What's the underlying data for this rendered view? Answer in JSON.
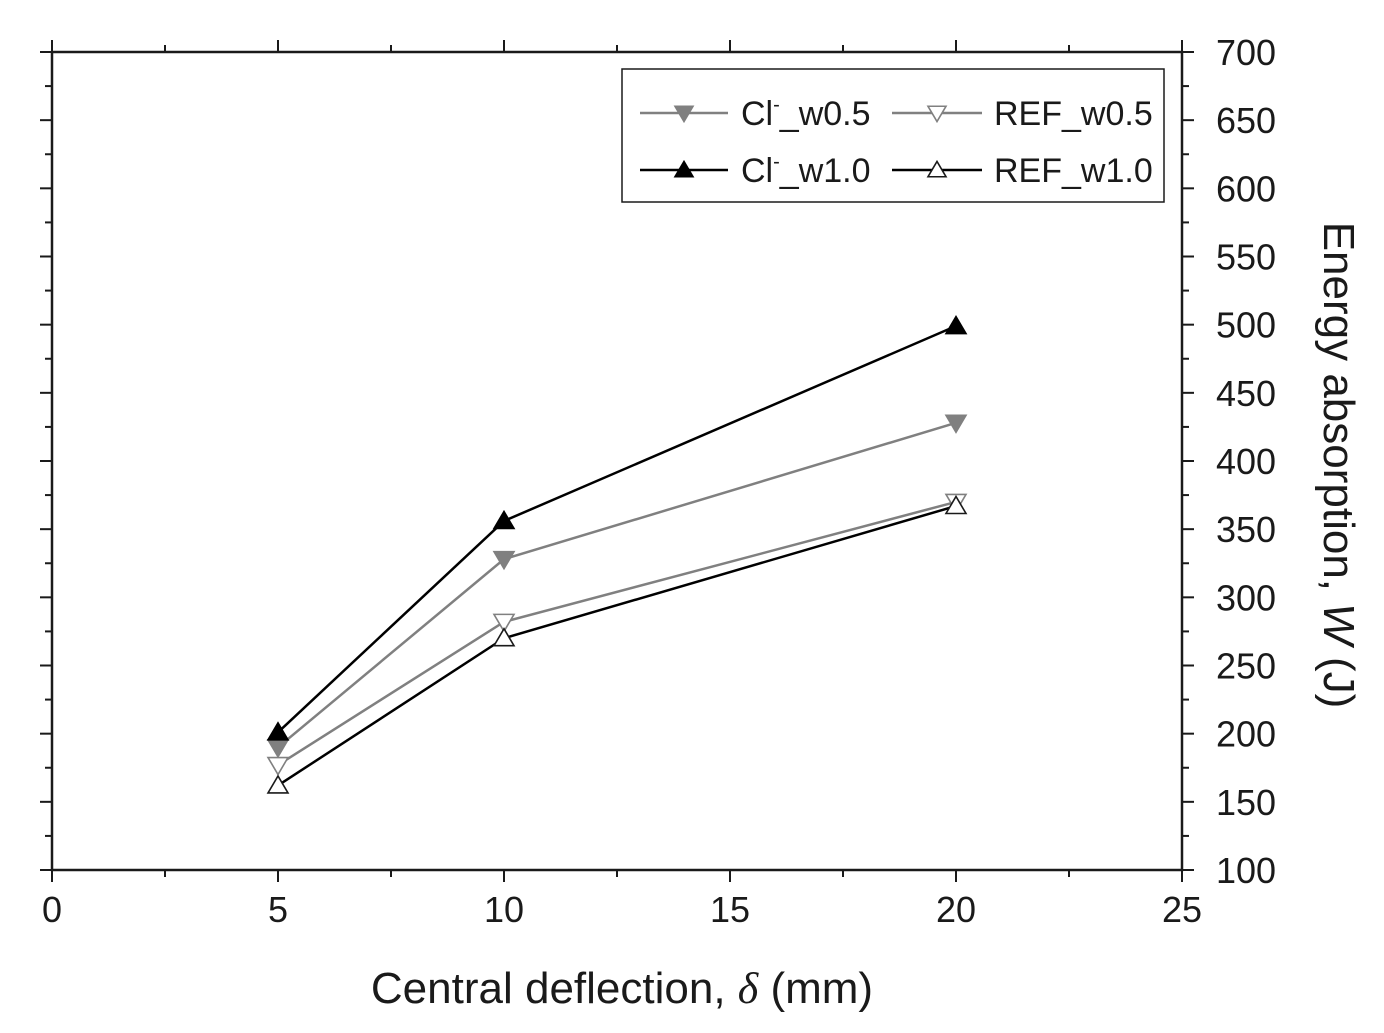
{
  "chart_data": {
    "type": "line",
    "xlabel_main": "Central deflection, ",
    "xlabel_symbol": "δ",
    "xlabel_unit": " (mm)",
    "ylabel_main": "Energy absorption, ",
    "ylabel_symbol": "W",
    "ylabel_unit": " (J)",
    "xlim": [
      0,
      25
    ],
    "ylim": [
      100,
      700
    ],
    "x_ticks": [
      "0",
      "5",
      "10",
      "15",
      "20",
      "25"
    ],
    "y_ticks": [
      "100",
      "150",
      "200",
      "250",
      "300",
      "350",
      "400",
      "450",
      "500",
      "550",
      "600",
      "650",
      "700"
    ],
    "legend_position": "top-right",
    "series": [
      {
        "name": "Cl",
        "name_sup": "-",
        "name_suffix": "_w0.5",
        "marker": "triangle-down",
        "filled": true,
        "color": "#808080",
        "x": [
          5,
          10,
          20
        ],
        "y": [
          190,
          328,
          428
        ]
      },
      {
        "name": "REF_w0.5",
        "marker": "triangle-down",
        "filled": false,
        "color": "#808080",
        "x": [
          5,
          10,
          20
        ],
        "y": [
          177,
          282,
          370
        ]
      },
      {
        "name": "Cl",
        "name_sup": "-",
        "name_suffix": "_w1.0",
        "marker": "triangle-up",
        "filled": true,
        "color": "#000000",
        "x": [
          5,
          10,
          20
        ],
        "y": [
          201,
          356,
          499
        ]
      },
      {
        "name": "REF_w1.0",
        "marker": "triangle-up",
        "filled": false,
        "color": "#000000",
        "x": [
          5,
          10,
          20
        ],
        "y": [
          162,
          270,
          367
        ]
      }
    ]
  }
}
